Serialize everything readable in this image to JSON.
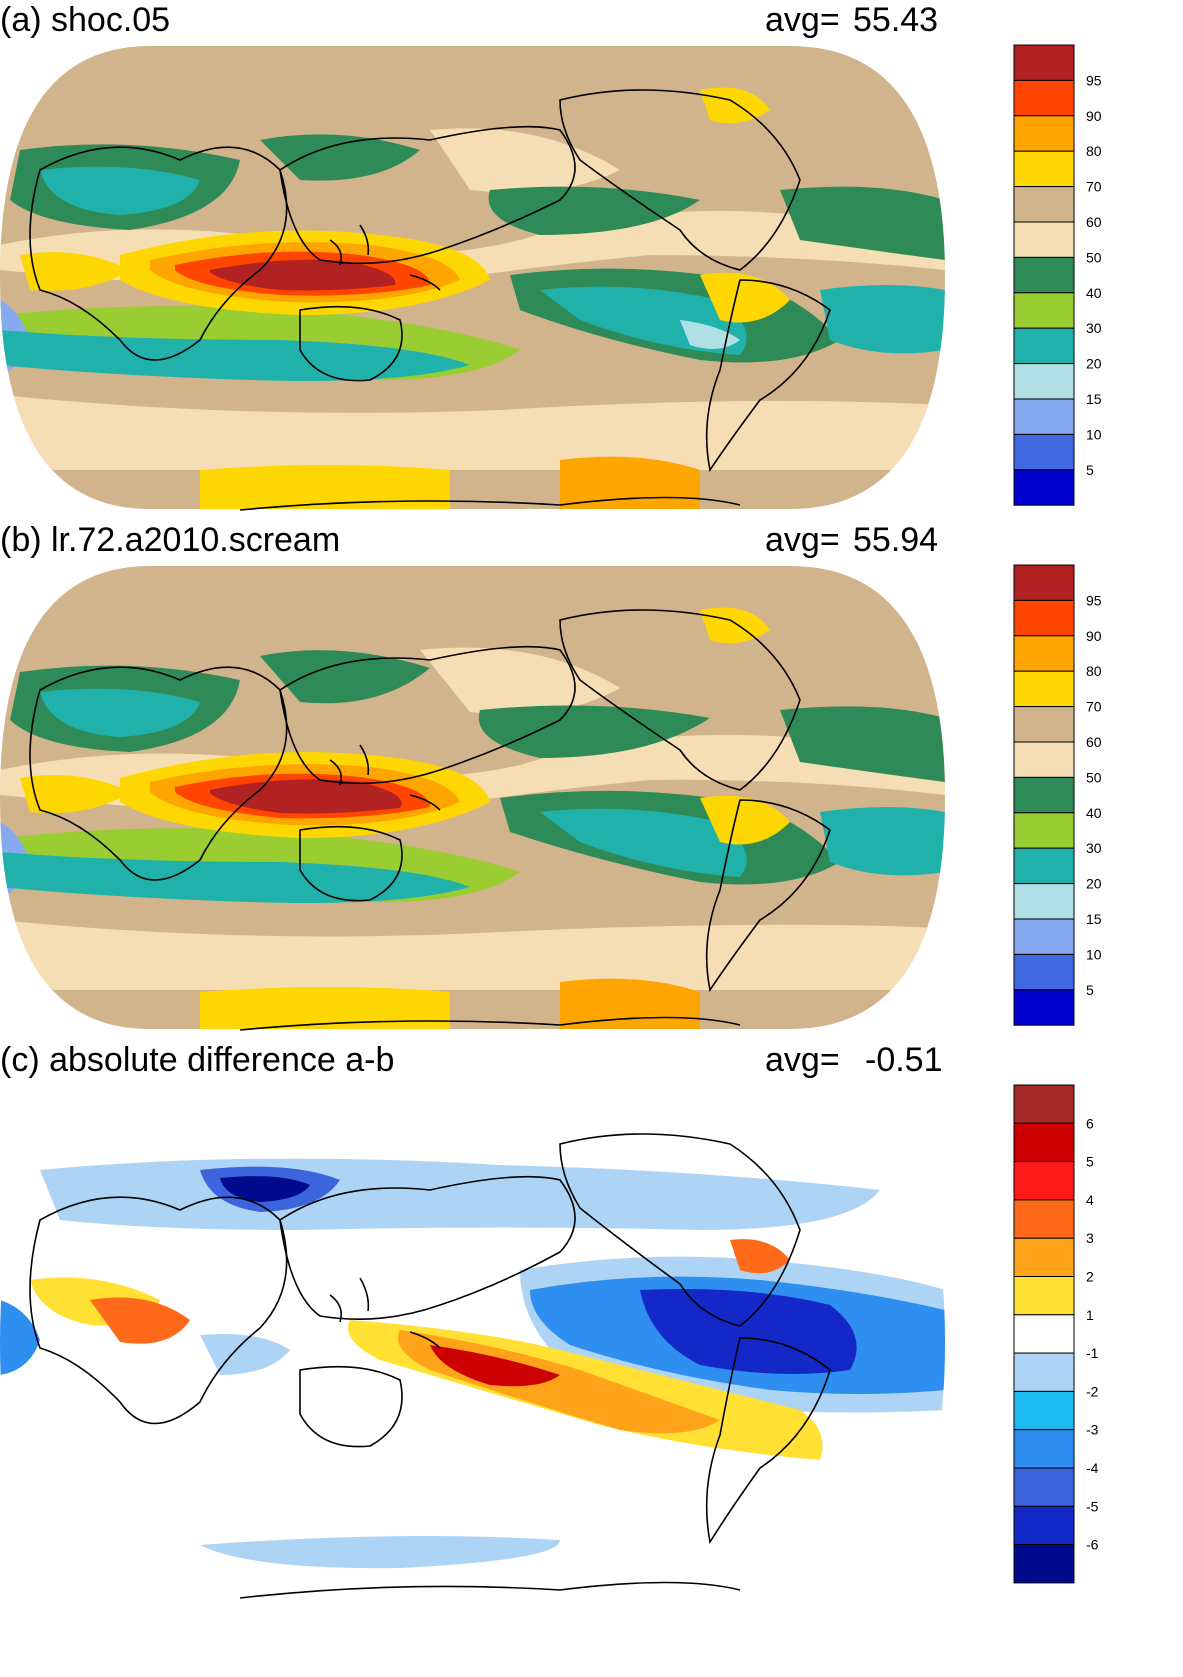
{
  "panels": [
    {
      "id": "a",
      "title": "(a) shoc.05",
      "avg_label": "avg=",
      "avg_value": "55.43",
      "colorbar": {
        "labels": [
          "95",
          "90",
          "80",
          "70",
          "60",
          "50",
          "40",
          "30",
          "20",
          "15",
          "10",
          "5"
        ],
        "colors": [
          "#b22222",
          "#ff4500",
          "#ffa500",
          "#ffd700",
          "#d2b48c",
          "#f5deb3",
          "#2e8b57",
          "#9acd32",
          "#20b2aa",
          "#b0e0e6",
          "#87a9f0",
          "#4169e1",
          "#0000cd"
        ]
      }
    },
    {
      "id": "b",
      "title": "(b) lr.72.a2010.scream",
      "avg_label": "avg=",
      "avg_value": "55.94",
      "colorbar": {
        "labels": [
          "95",
          "90",
          "80",
          "70",
          "60",
          "50",
          "40",
          "30",
          "20",
          "15",
          "10",
          "5"
        ],
        "colors": [
          "#b22222",
          "#ff4500",
          "#ffa500",
          "#ffd700",
          "#d2b48c",
          "#f5deb3",
          "#2e8b57",
          "#9acd32",
          "#20b2aa",
          "#b0e0e6",
          "#87a9f0",
          "#4169e1",
          "#0000cd"
        ]
      }
    },
    {
      "id": "c",
      "title": "(c) absolute difference a-b",
      "avg_label": "avg=",
      "avg_value": "-0.51",
      "colorbar": {
        "labels": [
          "6",
          "5",
          "4",
          "3",
          "2",
          "1",
          "-1",
          "-2",
          "-3",
          "-4",
          "-5",
          "-6"
        ],
        "colors": [
          "#a52a2a",
          "#cc0000",
          "#ff1a1a",
          "#ff6a1a",
          "#ffa31a",
          "#ffe033",
          "#ffffff",
          "#aed4f5",
          "#1ebbf0",
          "#2e8ff0",
          "#3c64dc",
          "#1428c8",
          "#000a8c"
        ]
      }
    }
  ]
}
